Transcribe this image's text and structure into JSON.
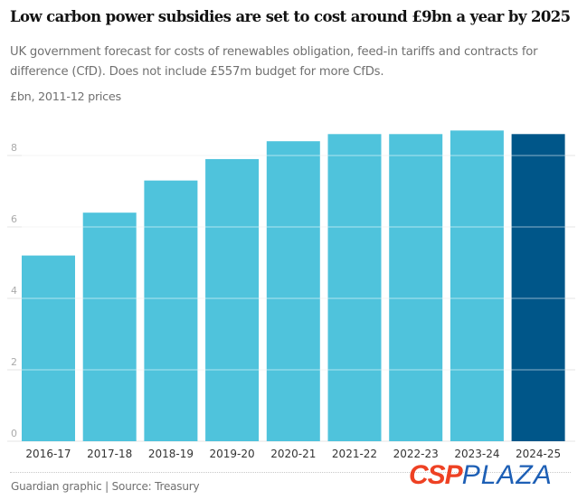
{
  "chart_data": {
    "type": "bar",
    "title": "Low carbon power subsidies are set to cost around £9bn a year by 2025",
    "subtitle": "UK government forecast for costs of renewables obligation, feed-in tariffs and contracts for difference (CfD). Does not include £557m budget for more CfDs.",
    "ylabel": "£bn, 2011-12 prices",
    "xlabel": "",
    "categories": [
      "2016-17",
      "2017-18",
      "2018-19",
      "2019-20",
      "2020-21",
      "2021-22",
      "2022-23",
      "2023-24",
      "2024-25"
    ],
    "values": [
      5.2,
      6.4,
      7.3,
      7.9,
      8.4,
      8.6,
      8.6,
      8.7,
      8.6
    ],
    "highlight_index": 8,
    "ylim": [
      0,
      8.8
    ],
    "yticks": [
      0,
      2,
      4,
      6,
      8
    ],
    "grid": true,
    "legend": "none",
    "colors": {
      "bar": "#4fc3dc",
      "highlight": "#005689",
      "grid": "#e6e6e6",
      "tick_text": "#aaaaaa",
      "category_text": "#333333"
    }
  },
  "footer": {
    "source": "Guardian graphic | Source: Treasury"
  },
  "watermark": {
    "part1": "CSP",
    "part2": "PLAZA"
  }
}
